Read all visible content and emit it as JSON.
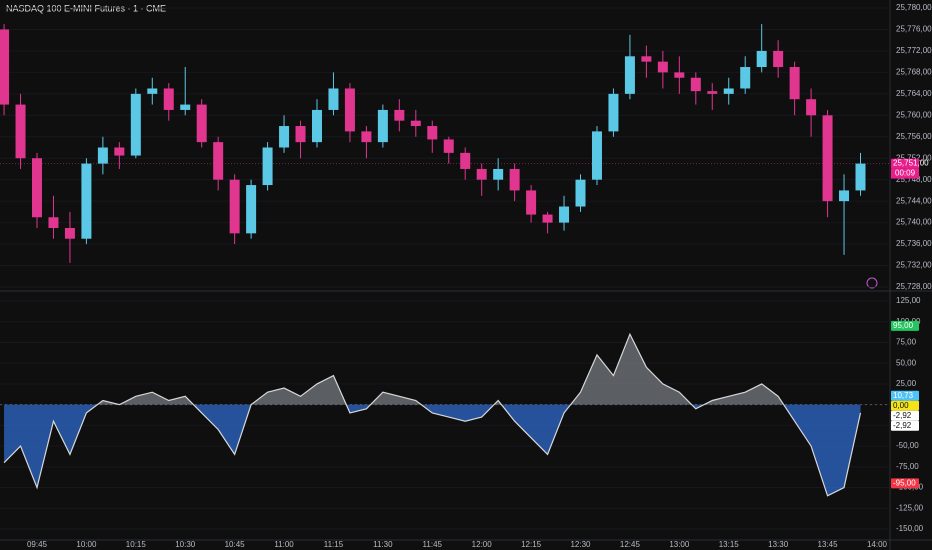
{
  "chart_data": [
    {
      "type": "candlestick",
      "title": "NASDAQ 100 E-MINI Futures · 1 · CME",
      "up_color": "#5bc8e6",
      "down_color": "#e0368f",
      "open": [
        25776,
        25762,
        25752,
        25741,
        25739,
        25737,
        25751,
        25754,
        25752.5,
        25764,
        25765,
        25761,
        25762,
        25755,
        25748,
        25738,
        25747,
        25754,
        25758,
        25755,
        25761,
        25765,
        25757,
        25755,
        25761,
        25759,
        25758,
        25755.5,
        25753,
        25750,
        25748,
        25750,
        25746,
        25741.5,
        25740,
        25743,
        25748,
        25757,
        25764,
        25771,
        25770,
        25768,
        25767,
        25764.5,
        25764,
        25765,
        25769,
        25772,
        25769,
        25763,
        25760,
        25744,
        25746,
        null
      ],
      "high": [
        25777,
        25764,
        25753,
        25745,
        25742,
        25752,
        25756,
        25755,
        25765,
        25767,
        25766,
        25769,
        25763,
        25756,
        25749,
        25748,
        25755,
        25760,
        25759,
        25763,
        25768,
        25766,
        25758,
        25762,
        25763,
        25761,
        25759,
        25756,
        25754,
        25751,
        25752,
        25751,
        25747,
        25742,
        25745,
        25749,
        25758,
        25765,
        25775,
        25773,
        25772,
        25771,
        25768,
        25766,
        25767,
        25771,
        25777,
        25774,
        25770,
        25765,
        25761,
        25749,
        25753,
        null
      ],
      "low": [
        25760,
        25750,
        25739,
        25737,
        25732.5,
        25736,
        25749,
        25750,
        25752,
        25762,
        25759,
        25760,
        25754,
        25746,
        25736,
        25737,
        25746,
        25753,
        25752,
        25754,
        25760,
        25755,
        25752,
        25754,
        25757,
        25756,
        25753,
        25751,
        25748,
        25745,
        25746,
        25744,
        25740,
        25738,
        25738.5,
        25742,
        25747,
        25756,
        25763,
        25767,
        25765,
        25764,
        25762,
        25761,
        25762,
        25764,
        25768,
        25767,
        25760,
        25756,
        25741,
        25734,
        25745,
        null
      ],
      "close": [
        25762,
        25752,
        25741,
        25739,
        25737,
        25751,
        25754,
        25752.5,
        25764,
        25765,
        25761,
        25762,
        25755,
        25748,
        25738,
        25747,
        25754,
        25758,
        25755,
        25761,
        25765,
        25757,
        25755,
        25761,
        25759,
        25758,
        25755.5,
        25753,
        25750,
        25748,
        25750,
        25746,
        25741.5,
        25740,
        25743,
        25748,
        25757,
        25764,
        25771,
        25770,
        25768,
        25767,
        25764.5,
        25764,
        25765,
        25769,
        25772,
        25769,
        25763,
        25760,
        25744,
        25746,
        25751,
        null
      ],
      "ylim": [
        25728,
        25780
      ],
      "yticks": [
        {
          "value": 25780,
          "label": "25,780,00"
        },
        {
          "value": 25776,
          "label": "25,776,00"
        },
        {
          "value": 25772,
          "label": "25,772,00"
        },
        {
          "value": 25768,
          "label": "25,768,00"
        },
        {
          "value": 25764,
          "label": "25,764,00"
        },
        {
          "value": 25760,
          "label": "25,760,00"
        },
        {
          "value": 25756,
          "label": "25,756,00"
        },
        {
          "value": 25752,
          "label": "25,752,00"
        },
        {
          "value": 25748,
          "label": "25,748,00"
        },
        {
          "value": 25744,
          "label": "25,744,00"
        },
        {
          "value": 25740,
          "label": "25,740,00"
        },
        {
          "value": 25736,
          "label": "25,736,00"
        },
        {
          "value": 25732,
          "label": "25,732,00"
        },
        {
          "value": 25728,
          "label": "25,728,00"
        }
      ],
      "badges": [
        {
          "value": 25751,
          "label": "25,751,00",
          "color": "#e91e8c"
        }
      ],
      "countdown": "00:09"
    },
    {
      "type": "line",
      "color": "#d8d8d8",
      "positive_fill": "#9aa0a8",
      "negative_fill": "#2f6fd6",
      "x": [
        null,
        null,
        "09:45",
        null,
        null,
        "10:00",
        null,
        null,
        "10:15",
        null,
        null,
        "10:30",
        null,
        null,
        "10:45",
        null,
        null,
        "11:00",
        null,
        null,
        "11:15",
        null,
        null,
        "11:30",
        null,
        null,
        "11:45",
        null,
        null,
        "12:00",
        null,
        null,
        "12:15",
        null,
        null,
        "12:30",
        null,
        null,
        "12:45",
        null,
        null,
        "13:00",
        null,
        null,
        "13:15",
        null,
        null,
        "13:30",
        null,
        null,
        "13:45",
        null,
        null,
        "14:00"
      ],
      "values": [
        -70,
        -50,
        -100,
        -20,
        -60,
        -10,
        5,
        0,
        10,
        15,
        5,
        10,
        -10,
        -30,
        -60,
        0,
        15,
        20,
        10,
        25,
        35,
        -10,
        -5,
        15,
        10,
        5,
        -10,
        -15,
        -20,
        -15,
        5,
        -20,
        -40,
        -60,
        -10,
        15,
        60,
        35,
        85,
        45,
        25,
        15,
        -5,
        5,
        10,
        15,
        25,
        10,
        -20,
        -50,
        -110,
        -100,
        -10,
        null
      ],
      "ylim": [
        -150,
        125
      ],
      "yticks": [
        {
          "value": 125,
          "label": "125,00"
        },
        {
          "value": 100,
          "label": "100,00"
        },
        {
          "value": 75,
          "label": "75,00"
        },
        {
          "value": 50,
          "label": "50,00"
        },
        {
          "value": 25,
          "label": "25,00"
        },
        {
          "value": 0,
          "label": "0,00"
        },
        {
          "value": -25,
          "label": "-25,00"
        },
        {
          "value": -50,
          "label": "-50,00"
        },
        {
          "value": -75,
          "label": "-75,00"
        },
        {
          "value": -100,
          "label": "-100,00"
        },
        {
          "value": -125,
          "label": "-125,00"
        },
        {
          "value": -150,
          "label": "-150,00"
        }
      ],
      "badges": [
        {
          "value": 95,
          "label": "95,00",
          "color": "#22c55e"
        },
        {
          "value": 10.73,
          "label": "10,73",
          "color": "#4fc3f7"
        },
        {
          "value": 0,
          "label": "0,00",
          "color": "#f5e31a"
        },
        {
          "value": -2.92,
          "label": "-2,92",
          "color": "#ffffff"
        },
        {
          "value": -2.92,
          "label": "-2,92",
          "color": "#ffffff"
        },
        {
          "value": -95,
          "label": "-95,00",
          "color": "#f23645"
        }
      ]
    }
  ]
}
